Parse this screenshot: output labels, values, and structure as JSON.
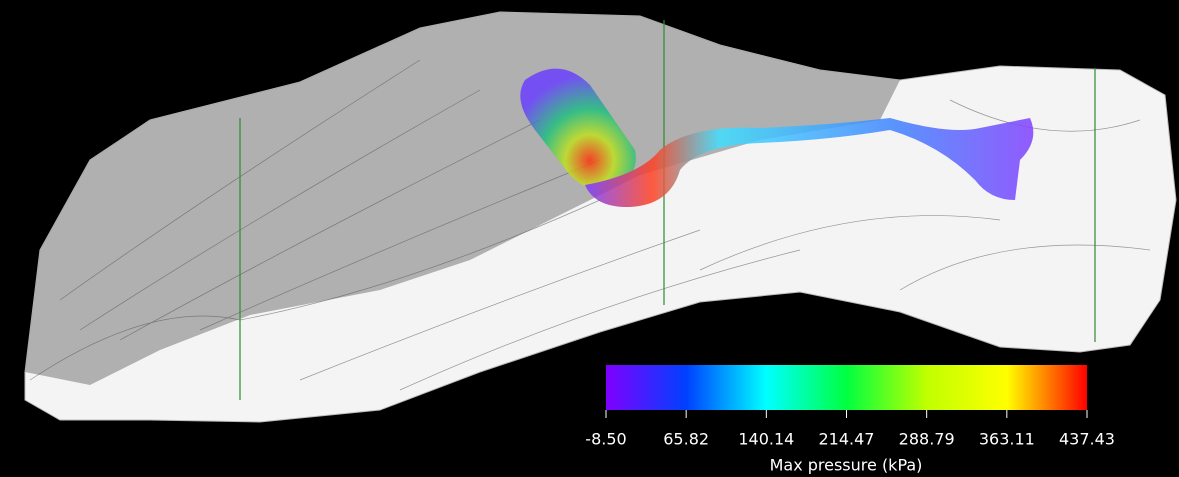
{
  "chart_data": {
    "type": "colorbar",
    "title": "Max pressure (kPa)",
    "xlim": [
      -8.5,
      437.43
    ],
    "xticks": [
      {
        "value": -8.5,
        "label": "-8.50"
      },
      65.82,
      140.14,
      214.47,
      288.79,
      363.11,
      437.43
    ],
    "colors": [
      "#7f00ff",
      "#0040ff",
      "#00ffff",
      "#00ff40",
      "#c0ff00",
      "#ffff00",
      "#ff0000"
    ]
  }
}
